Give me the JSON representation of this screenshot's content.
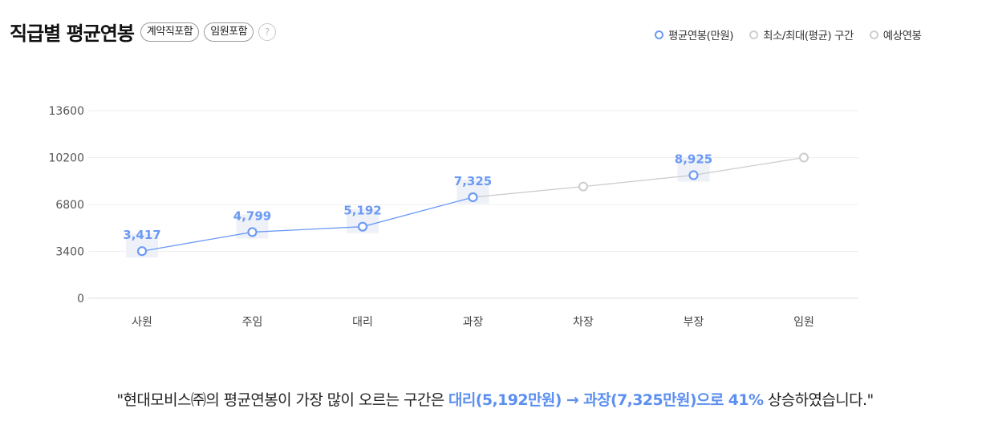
{
  "header": {
    "title": "직급별 평균연봉",
    "badges": [
      "계약직포함",
      "임원포함"
    ],
    "help_symbol": "?"
  },
  "legend": [
    {
      "label": "평균연봉(만원)",
      "color": "#6b9af5"
    },
    {
      "label": "최소/최대(평균) 구간",
      "color": "#cfcfcf"
    },
    {
      "label": "예상연봉",
      "color": "#cfcfcf"
    }
  ],
  "chart_data": {
    "type": "line",
    "categories": [
      "사원",
      "주임",
      "대리",
      "과장",
      "차장",
      "부장",
      "임원"
    ],
    "yticks": [
      "0",
      "3400",
      "6800",
      "10200",
      "13600"
    ],
    "ylim": [
      0,
      13600
    ],
    "grid": true,
    "legend_position": "top-right",
    "series": [
      {
        "name": "평균연봉(만원)",
        "values": [
          3417,
          4799,
          5192,
          7325,
          null,
          8925,
          null
        ],
        "labels": [
          "3,417",
          "4,799",
          "5,192",
          "7,325",
          "",
          "8,925",
          ""
        ],
        "color": "#6b9af5"
      },
      {
        "name": "예상연봉",
        "values": [
          null,
          null,
          null,
          7325,
          8100,
          8925,
          10200
        ],
        "color": "#cfcfcf"
      }
    ]
  },
  "summary": {
    "before": "\"현대모비스㈜의 평균연봉이 가장 많이 오르는 구간은 ",
    "highlight": "대리(5,192만원) → 과장(7,325만원)으로 41%",
    "after": " 상승하였습니다.\""
  }
}
